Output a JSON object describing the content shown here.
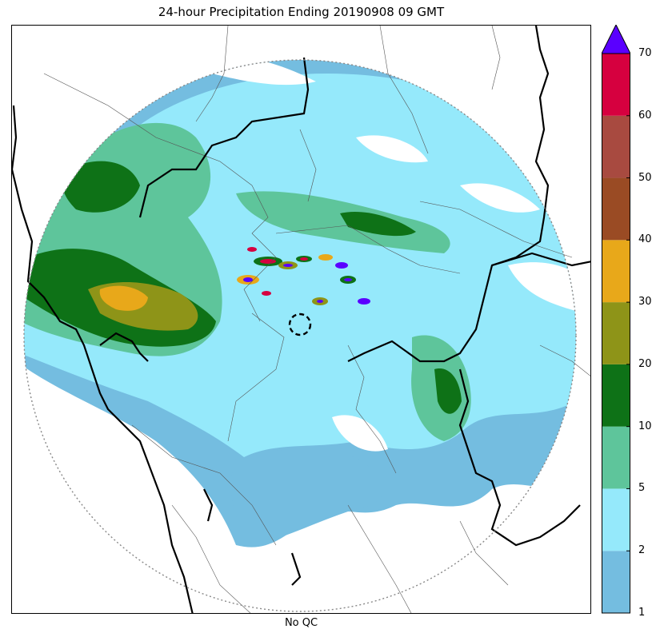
{
  "title": "24-hour Precipitation Ending 20190908 09 GMT",
  "subtitle": "No QC",
  "colorbar": {
    "levels": [
      "1",
      "2",
      "5",
      "10",
      "20",
      "30",
      "40",
      "50",
      "60",
      "70"
    ],
    "colors": [
      "#74bde0",
      "#95e9fb",
      "#5ec59b",
      "#0e7217",
      "#8e9418",
      "#e8a81a",
      "#9a4b24",
      "#a84a40",
      "#d6003f"
    ],
    "extend_color": "#5a00ff"
  },
  "map": {
    "radar_range_ring": "dotted",
    "radar_site_marker": "dashed-circle",
    "boundaries": [
      "state borders (thick black)",
      "district borders (thin gray)"
    ]
  }
}
